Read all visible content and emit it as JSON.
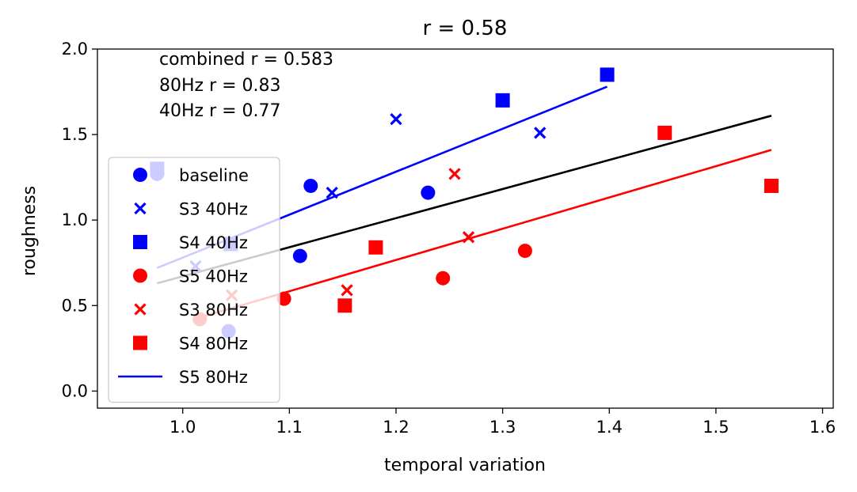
{
  "chart_data": {
    "type": "scatter",
    "title": "r = 0.58",
    "xlabel": "temporal variation",
    "ylabel": "roughness",
    "xlim": [
      0.92,
      1.61
    ],
    "ylim": [
      -0.1,
      2.0
    ],
    "xticks": [
      "1.0",
      "1.1",
      "1.2",
      "1.3",
      "1.4",
      "1.5",
      "1.6"
    ],
    "yticks": [
      "0.0",
      "0.5",
      "1.0",
      "1.5",
      "2.0"
    ],
    "grid": false,
    "legend_position": "left",
    "annotations": [
      "combined r = 0.583",
      "80Hz r = 0.83",
      "40Hz r = 0.77"
    ],
    "series": [
      {
        "name": "baseline",
        "marker": "circle",
        "color": "#0000ff",
        "points": [
          [
            0.976,
            1.27
          ],
          [
            1.12,
            1.2
          ],
          [
            1.23,
            1.16
          ],
          [
            1.11,
            0.79
          ],
          [
            1.043,
            0.35
          ]
        ]
      },
      {
        "name": "S3 40Hz",
        "marker": "x",
        "color": "#0000ff",
        "points": [
          [
            1.2,
            1.59
          ],
          [
            1.335,
            1.51
          ],
          [
            1.14,
            1.16
          ],
          [
            1.012,
            0.73
          ]
        ]
      },
      {
        "name": "S4 40Hz",
        "marker": "square",
        "color": "#0000ff",
        "points": [
          [
            1.398,
            1.85
          ],
          [
            1.3,
            1.7
          ],
          [
            0.976,
            1.3
          ],
          [
            1.045,
            0.86
          ]
        ]
      },
      {
        "name": "S5 40Hz",
        "marker": "circle",
        "color": "#ff0000",
        "points": [
          [
            1.321,
            0.82
          ],
          [
            1.244,
            0.66
          ],
          [
            1.095,
            0.54
          ],
          [
            1.016,
            0.42
          ]
        ]
      },
      {
        "name": "S3 80Hz",
        "marker": "x",
        "color": "#ff0000",
        "points": [
          [
            1.255,
            1.27
          ],
          [
            1.268,
            0.9
          ],
          [
            1.154,
            0.59
          ],
          [
            1.046,
            0.56
          ]
        ]
      },
      {
        "name": "S4 80Hz",
        "marker": "square",
        "color": "#ff0000",
        "points": [
          [
            1.452,
            1.51
          ],
          [
            1.552,
            1.2
          ],
          [
            1.181,
            0.84
          ],
          [
            1.152,
            0.5
          ]
        ]
      },
      {
        "name": "S5 80Hz",
        "marker": "line",
        "color": "#0000ff",
        "points": []
      }
    ],
    "fit_lines": [
      {
        "color": "#0000ff",
        "x": [
          0.976,
          1.398
        ],
        "y": [
          0.72,
          1.78
        ]
      },
      {
        "color": "#000000",
        "x": [
          0.976,
          1.552
        ],
        "y": [
          0.63,
          1.61
        ]
      },
      {
        "color": "#ff0000",
        "x": [
          1.016,
          1.552
        ],
        "y": [
          0.43,
          1.41
        ]
      }
    ]
  }
}
